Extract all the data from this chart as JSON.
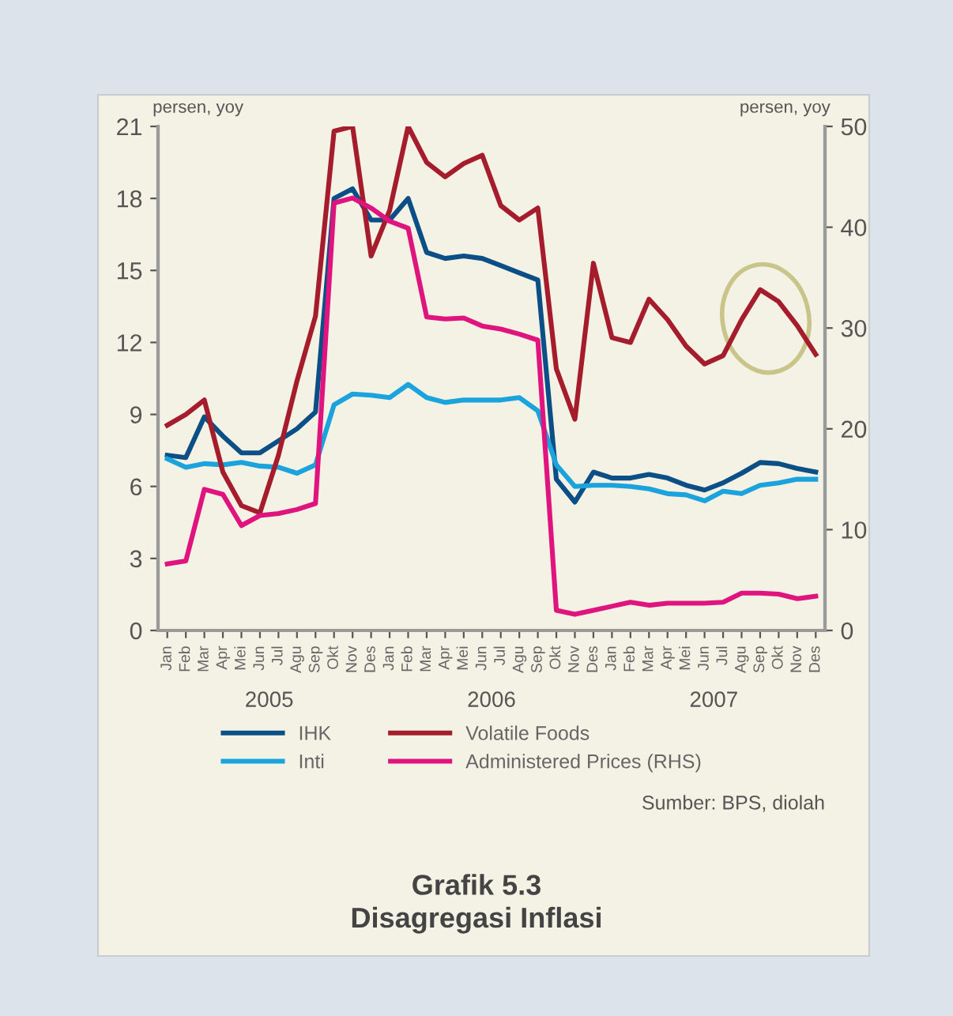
{
  "chart_data": {
    "type": "line",
    "title": "Grafik 5.3\nDisagregasi Inflasi",
    "ylabel": "persen, yoy",
    "y2label": "persen, yoy",
    "categories": [
      "Jan",
      "Feb",
      "Mar",
      "Apr",
      "Mei",
      "Jun",
      "Jul",
      "Agu",
      "Sep",
      "Okt",
      "Nov",
      "Des",
      "Jan",
      "Feb",
      "Mar",
      "Apr",
      "Mei",
      "Jun",
      "Jul",
      "Agu",
      "Sep",
      "Okt",
      "Nov",
      "Des",
      "Jan",
      "Feb",
      "Mar",
      "Apr",
      "Mei",
      "Jun",
      "Jul",
      "Agu",
      "Sep",
      "Okt",
      "Nov",
      "Des"
    ],
    "series": [
      {
        "name": "IHK",
        "color": "#0b4f86",
        "values": [
          7.3,
          7.2,
          8.9,
          8.1,
          7.4,
          7.4,
          7.9,
          8.4,
          9.1,
          18.0,
          18.4,
          17.1,
          17.1,
          18.0,
          15.75,
          15.5,
          15.6,
          15.5,
          15.2,
          14.9,
          14.6,
          6.3,
          5.35,
          6.6,
          6.35,
          6.35,
          6.5,
          6.35,
          6.05,
          5.85,
          6.15,
          6.55,
          7.0,
          6.95,
          6.75,
          6.6
        ]
      },
      {
        "name": "Inti",
        "color": "#1aa3dc",
        "values": [
          7.15,
          6.8,
          6.95,
          6.9,
          7.0,
          6.85,
          6.8,
          6.55,
          6.9,
          9.4,
          9.85,
          9.8,
          9.7,
          10.25,
          9.7,
          9.5,
          9.6,
          9.6,
          9.6,
          9.7,
          9.15,
          6.9,
          6.0,
          6.05,
          6.05,
          6.0,
          5.9,
          5.7,
          5.65,
          5.4,
          5.8,
          5.7,
          6.05,
          6.15,
          6.3,
          6.3
        ]
      },
      {
        "name": "Volatile Foods",
        "color": "#a51c2c",
        "values": [
          8.55,
          9.0,
          9.6,
          6.6,
          5.2,
          4.9,
          7.3,
          10.4,
          13.1,
          20.8,
          21.0,
          15.6,
          17.5,
          21.0,
          19.5,
          18.9,
          19.45,
          19.8,
          17.7,
          17.1,
          17.6,
          10.9,
          8.8,
          15.3,
          12.2,
          12.0,
          13.8,
          12.95,
          11.85,
          11.1,
          11.45,
          12.95,
          14.2,
          13.7,
          12.7,
          11.5
        ]
      },
      {
        "name": "Administered Prices (RHS)",
        "color": "#e0147f",
        "axis": "y2",
        "values": [
          6.6,
          6.9,
          14.0,
          13.5,
          10.4,
          11.4,
          11.6,
          12.0,
          12.6,
          42.4,
          42.9,
          41.9,
          40.6,
          39.9,
          31.1,
          30.9,
          31.0,
          30.2,
          29.9,
          29.4,
          28.8,
          2.0,
          1.6,
          2.0,
          2.4,
          2.8,
          2.5,
          2.7,
          2.7,
          2.7,
          2.8,
          3.7,
          3.7,
          3.6,
          3.15,
          3.4
        ]
      }
    ],
    "ylim": [
      0,
      21
    ],
    "yticks": [
      0,
      3,
      6,
      9,
      12,
      15,
      18,
      21
    ],
    "y2lim": [
      0,
      50
    ],
    "y2ticks": [
      0,
      10,
      20,
      30,
      40,
      50
    ],
    "grid": false,
    "legend": "bottom",
    "annotations": [
      "2005",
      "2006",
      "2007",
      "Sumber: BPS, diolah"
    ]
  }
}
